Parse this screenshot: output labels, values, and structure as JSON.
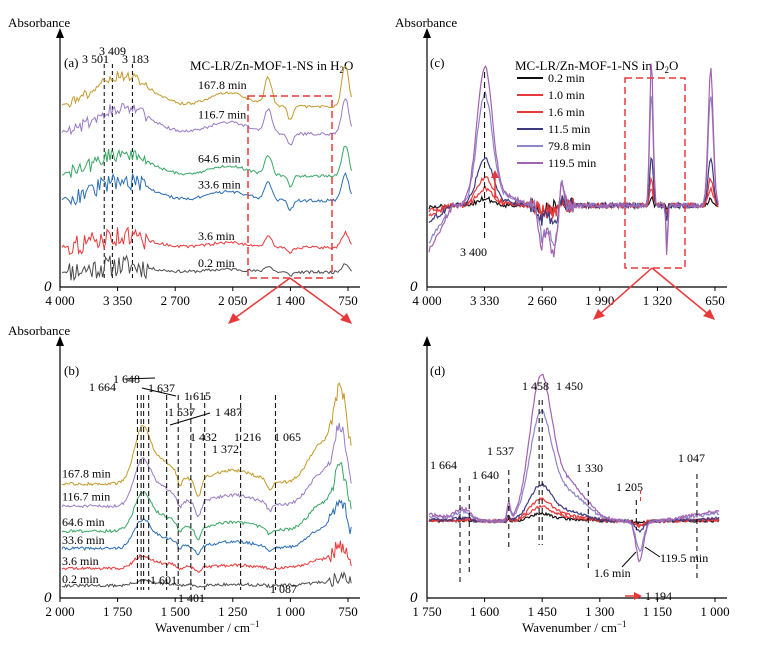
{
  "chart_data": [
    {
      "panel": "(a)",
      "type": "line",
      "ylabel": "Absorbance",
      "title": "MC-LR/Zn-MOF-1-NS in H",
      "title_sub": "2",
      "title_end": "O",
      "x_reversed": true,
      "xlim": [
        4000,
        750
      ],
      "x_ticks": [
        4000,
        3350,
        2700,
        2050,
        1400,
        750
      ],
      "x_tick_labels": [
        "4 000",
        "3 350",
        "2 700",
        "2 050",
        "1 400",
        "750"
      ],
      "y_origin_label": "0",
      "band_labels": [
        {
          "wn": 3501,
          "text": "3 501"
        },
        {
          "wn": 3409,
          "text": "3 409"
        },
        {
          "wn": 3183,
          "text": "3 183"
        }
      ],
      "series": [
        {
          "name": "0.2 min",
          "color": "#4d4d4d",
          "offset": 0.06,
          "amp": 0.03
        },
        {
          "name": "3.6 min",
          "color": "#e8393a",
          "offset": 0.16,
          "amp": 0.05
        },
        {
          "name": "33.6 min",
          "color": "#2a6fb5",
          "offset": 0.35,
          "amp": 0.09
        },
        {
          "name": "64.6 min",
          "color": "#3aa865",
          "offset": 0.45,
          "amp": 0.1
        },
        {
          "name": "116.7 min",
          "color": "#9a7cc6",
          "offset": 0.62,
          "amp": 0.12
        },
        {
          "name": "167.8 min",
          "color": "#c59a2c",
          "offset": 0.73,
          "amp": 0.14
        }
      ]
    },
    {
      "panel": "(b)",
      "type": "line",
      "ylabel": "Absorbance",
      "xlabel": "Wavenumber / cm",
      "xlabel_sup": "−1",
      "x_reversed": true,
      "xlim": [
        2000,
        750
      ],
      "x_ticks": [
        2000,
        1750,
        1500,
        1250,
        1000,
        750
      ],
      "x_tick_labels": [
        "2 000",
        "1 750",
        "1 500",
        "1 250",
        "1 000",
        "750"
      ],
      "y_origin_label": "0",
      "band_labels_top": [
        {
          "wn": 1664,
          "text": "1 664"
        },
        {
          "wn": 1648,
          "text": "1 648"
        },
        {
          "wn": 1637,
          "text": "1 637"
        },
        {
          "wn": 1615,
          "text": "1 615"
        },
        {
          "wn": 1537,
          "text": "1 537"
        },
        {
          "wn": 1487,
          "text": "1 487"
        },
        {
          "wn": 1432,
          "text": "1 432"
        },
        {
          "wn": 1372,
          "text": "1 372"
        },
        {
          "wn": 1216,
          "text": "1 216"
        },
        {
          "wn": 1065,
          "text": "1 065"
        }
      ],
      "band_labels_bottom": [
        {
          "wn": 1601,
          "text": "1 601"
        },
        {
          "wn": 1401,
          "text": "1 401"
        },
        {
          "wn": 1087,
          "text": "1 087"
        }
      ],
      "series": [
        {
          "name": "0.2 min",
          "color": "#4d4d4d",
          "offset": 0.05,
          "amp": 0.03
        },
        {
          "name": "3.6 min",
          "color": "#e8393a",
          "offset": 0.12,
          "amp": 0.08
        },
        {
          "name": "33.6 min",
          "color": "#2a6fb5",
          "offset": 0.2,
          "amp": 0.18
        },
        {
          "name": "64.6 min",
          "color": "#3aa865",
          "offset": 0.27,
          "amp": 0.24
        },
        {
          "name": "116.7 min",
          "color": "#9a7cc6",
          "offset": 0.37,
          "amp": 0.3
        },
        {
          "name": "167.8 min",
          "color": "#c59a2c",
          "offset": 0.46,
          "amp": 0.36
        }
      ]
    },
    {
      "panel": "(c)",
      "type": "line",
      "ylabel": "Absorbance",
      "title": "MC-LR/Zn-MOF-1-NS in D",
      "title_sub": "2",
      "title_end": "O",
      "x_reversed": true,
      "xlim": [
        4000,
        650
      ],
      "x_ticks": [
        4000,
        3330,
        2660,
        1990,
        1320,
        650
      ],
      "x_tick_labels": [
        "4 000",
        "3 330",
        "2 660",
        "1 990",
        "1 320",
        "650"
      ],
      "y_origin_label": "0",
      "band_labels": [
        {
          "wn": 3400,
          "text": "3 400"
        }
      ],
      "series": [
        {
          "name": "0.2 min",
          "color": "#111111",
          "amp": 0.05
        },
        {
          "name": "1.0 min",
          "color": "#e8393a",
          "amp": 0.12
        },
        {
          "name": "1.6 min",
          "color": "#e8393a",
          "amp": 0.2
        },
        {
          "name": "11.5 min",
          "color": "#3d3a80",
          "amp": 0.35
        },
        {
          "name": "79.8 min",
          "color": "#8c85c8",
          "amp": 0.8
        },
        {
          "name": "119.5 min",
          "color": "#a463b0",
          "amp": 1.0
        }
      ]
    },
    {
      "panel": "(d)",
      "type": "line",
      "xlabel": "Wavenumber / cm",
      "xlabel_sup": "−1",
      "x_reversed": true,
      "xlim": [
        1750,
        1000
      ],
      "x_ticks": [
        1750,
        1600,
        1450,
        1300,
        1150,
        1000
      ],
      "x_tick_labels": [
        "1 750",
        "1 600",
        "1 450",
        "1 300",
        "1 150",
        "1 000"
      ],
      "y_origin_label": "0",
      "band_labels": [
        {
          "wn": 1664,
          "text": "1 664"
        },
        {
          "wn": 1640,
          "text": "1 640"
        },
        {
          "wn": 1537,
          "text": "1 537"
        },
        {
          "wn": 1458,
          "text": "1 458"
        },
        {
          "wn": 1450,
          "text": "1 450"
        },
        {
          "wn": 1330,
          "text": "1 330"
        },
        {
          "wn": 1205,
          "text": "1 205"
        },
        {
          "wn": 1194,
          "text": "1 194"
        },
        {
          "wn": 1047,
          "text": "1 047"
        }
      ],
      "annotations": [
        "1.6 min",
        "119.5 min"
      ],
      "series": [
        {
          "name": "0.2 min",
          "color": "#111111",
          "amp": 0.05
        },
        {
          "name": "1.0 min",
          "color": "#e8393a",
          "amp": 0.1
        },
        {
          "name": "1.6 min",
          "color": "#e8393a",
          "amp": 0.15
        },
        {
          "name": "11.5 min",
          "color": "#3d3a80",
          "amp": 0.25
        },
        {
          "name": "79.8 min",
          "color": "#8c85c8",
          "amp": 0.75
        },
        {
          "name": "119.5 min",
          "color": "#a463b0",
          "amp": 1.0
        }
      ]
    }
  ]
}
